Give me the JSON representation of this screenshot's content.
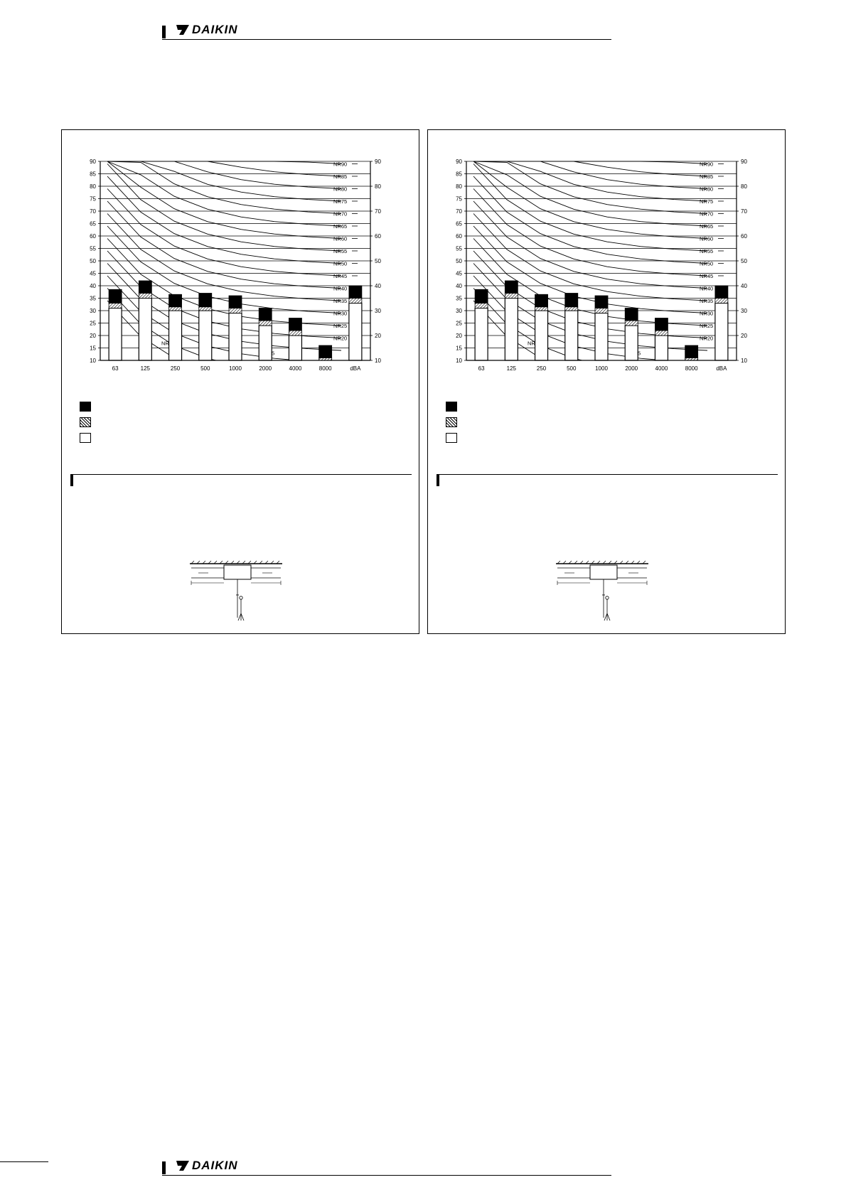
{
  "brand": {
    "logo_text": "DAIKIN"
  },
  "chart_data": [
    {
      "type": "bar",
      "categories": [
        "63",
        "125",
        "250",
        "500",
        "1000",
        "2000",
        "4000",
        "8000",
        "dBA"
      ],
      "series": [
        {
          "values": [
            31,
            35,
            30,
            30,
            29,
            24,
            20,
            10,
            33
          ]
        },
        {
          "values": [
            33,
            37,
            31.5,
            31.5,
            31,
            26,
            22,
            11,
            35
          ]
        },
        {
          "values": [
            38.5,
            42,
            36.5,
            37,
            36,
            31,
            27,
            16,
            40
          ]
        }
      ],
      "nr_curves": [
        "NR0",
        "NR5",
        "NR10",
        "NR15",
        "NR20",
        "NR25",
        "NR30",
        "NR35",
        "NR40",
        "NR45",
        "NR50",
        "NR55",
        "NR60",
        "NR65",
        "NR70",
        "NR75",
        "NR80",
        "NR85",
        "NR90"
      ],
      "yticks": [
        90,
        85,
        80,
        75,
        70,
        65,
        60,
        55,
        50,
        45,
        40,
        35,
        30,
        25,
        20,
        15,
        10
      ],
      "right_yticks": [
        90,
        80,
        70,
        60,
        50,
        40,
        30,
        20,
        10
      ],
      "ylim": [
        10,
        90
      ],
      "grid": true,
      "legend": {
        "placement": "bottom-left",
        "swatches": [
          "black",
          "hatched",
          "white"
        ]
      }
    },
    {
      "type": "bar",
      "categories": [
        "63",
        "125",
        "250",
        "500",
        "1000",
        "2000",
        "4000",
        "8000",
        "dBA"
      ],
      "series": [
        {
          "values": [
            31,
            35,
            30,
            30,
            29,
            24,
            20,
            10,
            33
          ]
        },
        {
          "values": [
            33,
            37,
            31.5,
            31.5,
            31,
            26,
            22,
            11,
            35
          ]
        },
        {
          "values": [
            38.5,
            42,
            36.5,
            37,
            36,
            31,
            27,
            16,
            40
          ]
        }
      ],
      "nr_curves": [
        "NR0",
        "NR5",
        "NR10",
        "NR15",
        "NR20",
        "NR25",
        "NR30",
        "NR35",
        "NR40",
        "NR45",
        "NR50",
        "NR55",
        "NR60",
        "NR65",
        "NR70",
        "NR75",
        "NR80",
        "NR85",
        "NR90"
      ],
      "yticks": [
        90,
        85,
        80,
        75,
        70,
        65,
        60,
        55,
        50,
        45,
        40,
        35,
        30,
        25,
        20,
        15,
        10
      ],
      "right_yticks": [
        90,
        80,
        70,
        60,
        50,
        40,
        30,
        20,
        10
      ],
      "ylim": [
        10,
        90
      ],
      "grid": true,
      "legend": {
        "placement": "bottom-left",
        "swatches": [
          "black",
          "hatched",
          "white"
        ]
      }
    }
  ]
}
